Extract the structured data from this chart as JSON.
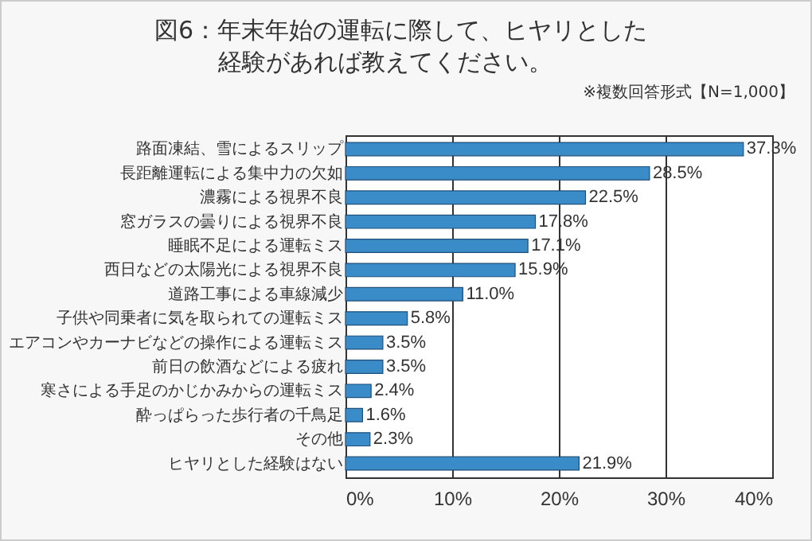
{
  "chart_data": {
    "type": "bar",
    "orientation": "horizontal",
    "title": "図6：年末年始の運転に際して、ヒヤリとした経験があれば教えてください。",
    "subtitle": "※複数回答形式【N=1,000】",
    "categories": [
      "路面凍結、雪によるスリップ",
      "長距離運転による集中力の欠如",
      "濃霧による視界不良",
      "窓ガラスの曇りによる視界不良",
      "睡眠不足による運転ミス",
      "西日などの太陽光による視界不良",
      "道路工事による車線減少",
      "子供や同乗者に気を取られての運転ミス",
      "エアコンやカーナビなどの操作による運転ミス",
      "前日の飲酒などによる疲れ",
      "寒さによる手足のかじかみからの運転ミス",
      "酔っぱらった歩行者の千鳥足",
      "その他",
      "ヒヤリとした経験はない"
    ],
    "values": [
      37.3,
      28.5,
      22.5,
      17.8,
      17.1,
      15.9,
      11.0,
      5.8,
      3.5,
      3.5,
      2.4,
      1.6,
      2.3,
      21.9
    ],
    "value_labels": [
      "37.3%",
      "28.5%",
      "22.5%",
      "17.8%",
      "17.1%",
      "15.9%",
      "11.0%",
      "5.8%",
      "3.5%",
      "3.5%",
      "2.4%",
      "1.6%",
      "2.3%",
      "21.9%"
    ],
    "color": "#3a8cc8",
    "xlim": [
      0,
      40
    ],
    "xticks": [
      {
        "value": 0,
        "label": "0%"
      },
      {
        "value": 10,
        "label": "10%"
      },
      {
        "value": 20,
        "label": "20%"
      },
      {
        "value": 30,
        "label": "30%"
      },
      {
        "value": 40,
        "label": "40%"
      }
    ],
    "grid": "x"
  }
}
